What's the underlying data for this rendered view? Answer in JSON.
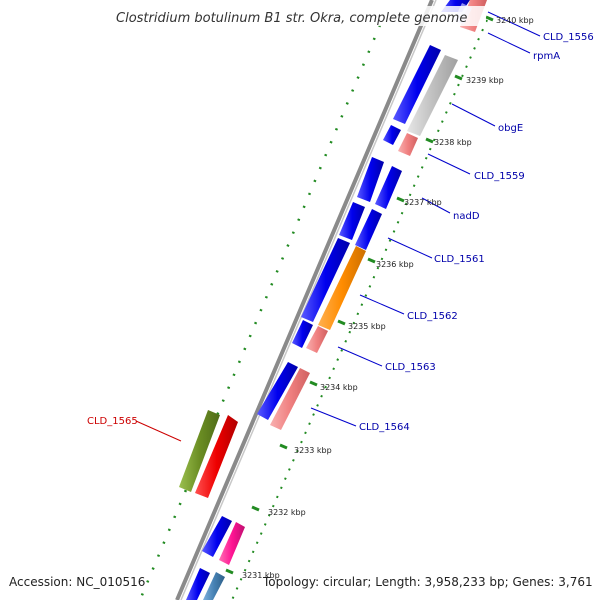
{
  "title": "Clostridium botulinum B1 str. Okra, complete genome",
  "footer": {
    "accession": "Accession: NC_010516",
    "stats": "Topology: circular; Length: 3,958,233 bp; Genes: 3,761"
  },
  "ticks": [
    "3240 kbp",
    "3239 kbp",
    "3238 kbp",
    "3237 kbp",
    "3236 kbp",
    "3235 kbp",
    "3234 kbp",
    "3233 kbp",
    "3232 kbp",
    "3231 kbp"
  ],
  "gene_labels": [
    {
      "id": "CLD_1556",
      "color": "#0000aa"
    },
    {
      "id": "rpmA",
      "color": "#0000aa"
    },
    {
      "id": "obgE",
      "color": "#0000aa"
    },
    {
      "id": "CLD_1559",
      "color": "#0000aa"
    },
    {
      "id": "nadD",
      "color": "#0000aa"
    },
    {
      "id": "CLD_1561",
      "color": "#0000aa"
    },
    {
      "id": "CLD_1562",
      "color": "#0000aa"
    },
    {
      "id": "CLD_1563",
      "color": "#0000aa"
    },
    {
      "id": "CLD_1564",
      "color": "#0000aa"
    },
    {
      "id": "CLD_1565",
      "color": "#cc0000"
    }
  ],
  "colors": {
    "cds": "#0000ee",
    "gene_pink": "#f08080",
    "gene_gray": "#c0c0c0",
    "gene_orange": "#ff8c00",
    "gene_red": "#ee0000",
    "gene_olive": "#6b8e23",
    "gene_magenta": "#ff1493",
    "gene_steel": "#4682b4",
    "backbone": "#888888",
    "dots": "#228b22"
  }
}
